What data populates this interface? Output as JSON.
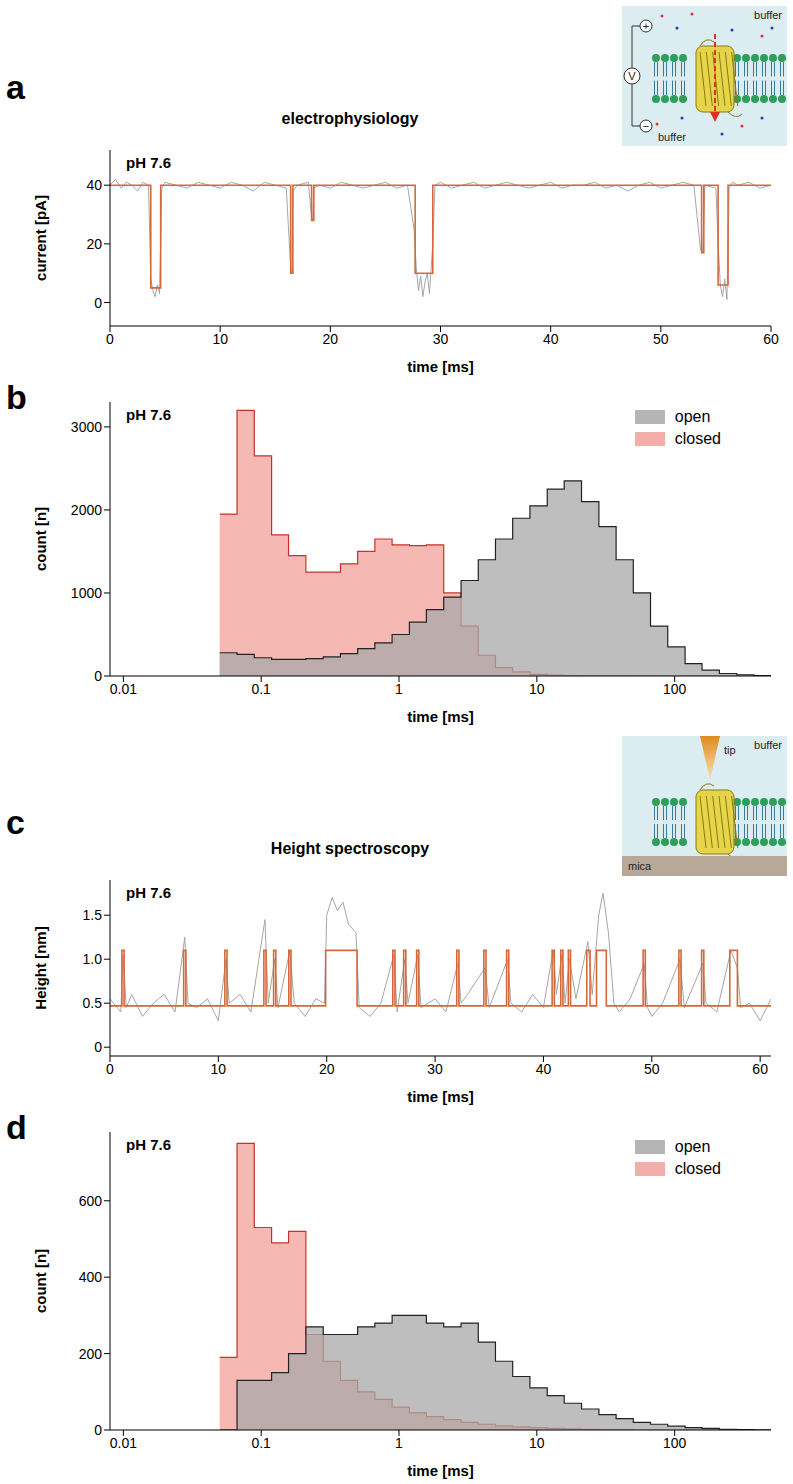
{
  "chart_data": [
    {
      "panel": "a",
      "type": "line",
      "title": "electrophysiology",
      "annotations": [
        "pH 7.6"
      ],
      "x_label": "time [ms]",
      "y_label": "current [pA]",
      "xlim": [
        0,
        60
      ],
      "xticks": [
        0,
        10,
        20,
        30,
        40,
        50,
        60
      ],
      "ylim": [
        -8,
        52
      ],
      "yticks": [
        0,
        20,
        40
      ],
      "inset_labels": {
        "top": "buffer",
        "bottom": "buffer",
        "voltage": "V",
        "plus": "+",
        "minus": "−"
      },
      "series": [
        {
          "color": "#a6a6a6",
          "x": [
            0,
            0.5,
            1,
            1.5,
            2,
            2.5,
            3,
            3.5,
            3.7,
            3.9,
            4.1,
            4.3,
            4.5,
            4.7,
            5,
            6,
            7,
            8,
            9,
            10,
            11,
            12,
            13,
            14,
            15,
            16,
            16.4,
            16.5,
            16.6,
            17,
            18,
            18.3,
            18.4,
            18.5,
            19,
            20,
            21,
            22,
            23,
            24,
            25,
            26,
            27,
            27.6,
            27.8,
            28,
            28.2,
            28.4,
            28.6,
            28.8,
            29,
            29.3,
            29.5,
            30,
            31,
            32,
            33,
            34,
            35,
            36,
            37,
            38,
            39,
            40,
            41,
            42,
            43,
            44,
            45,
            46,
            47,
            48,
            49,
            50,
            51,
            52,
            53,
            53.6,
            53.8,
            54,
            55,
            55.2,
            55.4,
            55.6,
            55.8,
            56,
            56.2,
            56.5,
            57,
            58,
            59,
            60
          ],
          "values": [
            40,
            42,
            39,
            41,
            40,
            38,
            41,
            40,
            8,
            4,
            2,
            6,
            3,
            39,
            41,
            40,
            39,
            41,
            40,
            39,
            41,
            40,
            38,
            41,
            40,
            39,
            12,
            10,
            38,
            40,
            41,
            29,
            28,
            39,
            40,
            39,
            41,
            40,
            39,
            40,
            41,
            39,
            40,
            25,
            12,
            4,
            9,
            2,
            7,
            10,
            3,
            20,
            40,
            41,
            39,
            40,
            41,
            39,
            40,
            41,
            40,
            39,
            40,
            41,
            39,
            40,
            40,
            41,
            39,
            40,
            38,
            40,
            41,
            39,
            40,
            41,
            40,
            18,
            17,
            40,
            39,
            20,
            6,
            2,
            8,
            1,
            39,
            41,
            40,
            41,
            39,
            40
          ]
        },
        {
          "color": "#d4683a",
          "x": [
            0,
            3.7,
            3.7,
            4.6,
            4.6,
            16.4,
            16.4,
            16.6,
            16.6,
            18.3,
            18.3,
            18.5,
            18.5,
            27.7,
            27.7,
            29.3,
            29.3,
            53.7,
            53.7,
            53.9,
            53.9,
            55.2,
            55.2,
            56.1,
            56.1,
            60
          ],
          "values": [
            40,
            40,
            5,
            5,
            40,
            40,
            10,
            10,
            40,
            40,
            28,
            28,
            40,
            40,
            10,
            10,
            40,
            40,
            17,
            17,
            40,
            40,
            6,
            6,
            40,
            40
          ]
        }
      ]
    },
    {
      "panel": "b",
      "type": "histogram",
      "annotations": [
        "pH 7.6"
      ],
      "x_label": "time [ms]",
      "y_label": "count [n]",
      "log": "x",
      "xlim": [
        0.008,
        500
      ],
      "xticks": [
        0.01,
        0.1,
        1,
        10,
        100
      ],
      "ylim": [
        0,
        3300
      ],
      "yticks": [
        0,
        1000,
        2000,
        3000
      ],
      "legend": "upper right",
      "bins": [
        0.05,
        0.0668,
        0.0891,
        0.119,
        0.158,
        0.211,
        0.282,
        0.376,
        0.501,
        0.668,
        0.891,
        1.19,
        1.58,
        2.11,
        2.82,
        3.76,
        5.01,
        6.68,
        8.91,
        11.9,
        15.8,
        21.1,
        28.2,
        37.6,
        50.1,
        66.8,
        89.1,
        119,
        158,
        211,
        282,
        376,
        501
      ],
      "series": [
        {
          "name": "open",
          "color": "#a8a8a8",
          "values": [
            280,
            260,
            220,
            200,
            200,
            210,
            230,
            270,
            330,
            400,
            500,
            650,
            800,
            950,
            1150,
            1400,
            1650,
            1900,
            2050,
            2250,
            2350,
            2100,
            1800,
            1400,
            1000,
            600,
            350,
            150,
            70,
            30,
            15,
            5
          ]
        },
        {
          "name": "closed",
          "color": "#f2a09a",
          "values": [
            1950,
            3200,
            2650,
            1700,
            1450,
            1250,
            1250,
            1350,
            1500,
            1650,
            1580,
            1570,
            1580,
            1000,
            600,
            250,
            100,
            50,
            20,
            10,
            5,
            3,
            2,
            1,
            0,
            0,
            0,
            0,
            0,
            0,
            0,
            0
          ]
        }
      ]
    },
    {
      "panel": "c",
      "type": "line",
      "title": "Height spectroscopy",
      "annotations": [
        "pH 7.6"
      ],
      "x_label": "time [ms]",
      "y_label": "Height [nm]",
      "xlim": [
        0,
        61
      ],
      "xticks": [
        0,
        10,
        20,
        30,
        40,
        50,
        60
      ],
      "ylim": [
        -0.1,
        1.9
      ],
      "yticks": [
        0,
        0.5,
        {
          "value": 1,
          "label": "1.0"
        },
        1.5
      ],
      "inset_labels": {
        "top": "buffer",
        "tip": "tip",
        "substrate": "mica"
      },
      "series": [
        {
          "color": "#a6a6a6",
          "x": [
            0,
            1,
            1.2,
            1.5,
            2,
            3,
            4,
            5,
            6,
            6.9,
            7.2,
            8,
            9,
            10,
            10.7,
            11,
            12,
            13,
            14.3,
            14.6,
            15.2,
            15.5,
            16.6,
            17,
            18,
            19,
            19.8,
            20,
            20.5,
            21,
            21.5,
            22,
            22.7,
            23,
            24,
            25,
            26.2,
            26.5,
            27.2,
            27.5,
            28.4,
            28.7,
            30,
            31,
            32.1,
            32.4,
            33,
            34.6,
            35,
            36.7,
            37,
            38,
            39,
            40,
            40.9,
            41.2,
            41.7,
            42,
            42.4,
            43,
            44.1,
            44.5,
            45.1,
            45.5,
            46,
            46.5,
            47,
            48,
            49.3,
            49.6,
            50,
            51,
            52.6,
            53,
            54.7,
            55,
            56,
            57.3,
            57.6,
            57.9,
            58.2,
            59,
            60,
            61
          ],
          "values": [
            0.55,
            0.4,
            1.05,
            0.45,
            0.6,
            0.35,
            0.5,
            0.6,
            0.4,
            1.25,
            0.5,
            0.45,
            0.55,
            0.3,
            1.0,
            0.5,
            0.6,
            0.4,
            1.45,
            0.5,
            1.0,
            0.45,
            1.1,
            0.5,
            0.35,
            0.55,
            0.5,
            1.5,
            1.7,
            1.55,
            1.65,
            1.4,
            1.3,
            0.45,
            0.35,
            0.5,
            1.05,
            0.4,
            1.0,
            0.5,
            1.05,
            0.45,
            0.55,
            0.4,
            0.95,
            0.5,
            0.6,
            0.9,
            0.45,
            1.0,
            0.5,
            0.4,
            0.6,
            0.45,
            1.1,
            0.6,
            1.05,
            0.5,
            1.0,
            0.55,
            1.2,
            0.6,
            1.5,
            1.75,
            1.3,
            0.5,
            0.4,
            0.55,
            0.95,
            0.45,
            0.35,
            0.5,
            1.0,
            0.45,
            0.95,
            0.5,
            0.4,
            1.1,
            1.0,
            0.9,
            0.45,
            0.5,
            0.3,
            0.55
          ]
        },
        {
          "color": "#d4683a",
          "x": [
            0,
            1.1,
            1.1,
            1.3,
            1.3,
            6.8,
            6.8,
            7,
            7,
            10.6,
            10.6,
            10.8,
            10.8,
            14.2,
            14.2,
            14.4,
            14.4,
            15.1,
            15.1,
            15.3,
            15.3,
            16.5,
            16.5,
            16.7,
            16.7,
            19.9,
            19.9,
            22.8,
            22.8,
            26.1,
            26.1,
            26.3,
            26.3,
            27.1,
            27.1,
            27.3,
            27.3,
            28.3,
            28.3,
            28.5,
            28.5,
            32,
            32,
            32.2,
            32.2,
            34.5,
            34.5,
            34.7,
            34.7,
            36.6,
            36.6,
            36.8,
            36.8,
            40.8,
            40.8,
            41,
            41,
            41.6,
            41.6,
            41.8,
            41.8,
            42.3,
            42.3,
            42.5,
            42.5,
            44,
            44,
            44.3,
            44.3,
            44.9,
            44.9,
            45.8,
            45.8,
            49.2,
            49.2,
            49.4,
            49.4,
            52.5,
            52.5,
            52.7,
            52.7,
            54.6,
            54.6,
            54.8,
            54.8,
            57.2,
            57.2,
            57.9,
            57.9,
            61
          ],
          "values": [
            0.47,
            0.47,
            1.1,
            1.1,
            0.47,
            0.47,
            1.1,
            1.1,
            0.47,
            0.47,
            1.1,
            1.1,
            0.47,
            0.47,
            1.1,
            1.1,
            0.47,
            0.47,
            1.1,
            1.1,
            0.47,
            0.47,
            1.1,
            1.1,
            0.47,
            0.47,
            1.1,
            1.1,
            0.47,
            0.47,
            1.1,
            1.1,
            0.47,
            0.47,
            1.1,
            1.1,
            0.47,
            0.47,
            1.1,
            1.1,
            0.47,
            0.47,
            1.1,
            1.1,
            0.47,
            0.47,
            1.1,
            1.1,
            0.47,
            0.47,
            1.1,
            1.1,
            0.47,
            0.47,
            1.1,
            1.1,
            0.47,
            0.47,
            1.1,
            1.1,
            0.47,
            0.47,
            1.1,
            1.1,
            0.47,
            0.47,
            1.1,
            1.1,
            0.47,
            0.47,
            1.1,
            1.1,
            0.47,
            0.47,
            1.1,
            1.1,
            0.47,
            0.47,
            1.1,
            1.1,
            0.47,
            0.47,
            1.1,
            1.1,
            0.47,
            0.47,
            1.1,
            1.1,
            0.47,
            0.47
          ]
        }
      ]
    },
    {
      "panel": "d",
      "type": "histogram",
      "annotations": [
        "pH 7.6"
      ],
      "x_label": "time [ms]",
      "y_label": "count [n]",
      "log": "x",
      "xlim": [
        0.008,
        500
      ],
      "xticks": [
        0.01,
        0.1,
        1,
        10,
        100
      ],
      "ylim": [
        0,
        780
      ],
      "yticks": [
        0,
        200,
        400,
        600
      ],
      "legend": "upper right",
      "bins": [
        0.05,
        0.0668,
        0.0891,
        0.119,
        0.158,
        0.211,
        0.282,
        0.376,
        0.501,
        0.668,
        0.891,
        1.19,
        1.58,
        2.11,
        2.82,
        3.76,
        5.01,
        6.68,
        8.91,
        11.9,
        15.8,
        21.1,
        28.2,
        37.6,
        50.1,
        66.8,
        89.1,
        119,
        158,
        211,
        282,
        376,
        501
      ],
      "series": [
        {
          "name": "open",
          "color": "#a8a8a8",
          "values": [
            0,
            130,
            130,
            150,
            200,
            270,
            250,
            250,
            270,
            280,
            300,
            300,
            280,
            270,
            280,
            230,
            180,
            140,
            110,
            90,
            70,
            55,
            40,
            30,
            20,
            15,
            10,
            6,
            4,
            2,
            1,
            0
          ]
        },
        {
          "name": "closed",
          "color": "#f2a09a",
          "values": [
            190,
            750,
            530,
            490,
            520,
            250,
            180,
            130,
            100,
            80,
            60,
            45,
            35,
            27,
            20,
            15,
            11,
            8,
            6,
            4,
            3,
            2,
            1,
            1,
            0,
            0,
            0,
            0,
            0,
            0,
            0,
            0
          ]
        }
      ]
    }
  ]
}
